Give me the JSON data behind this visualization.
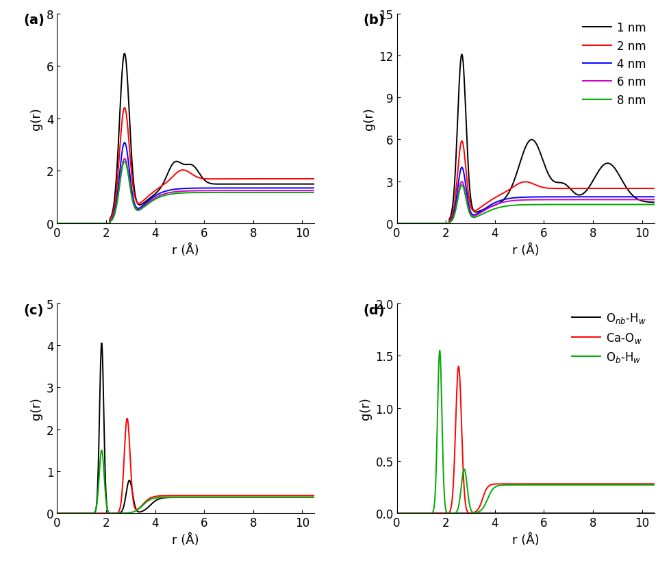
{
  "panel_a": {
    "ylabel": "g(r)",
    "xlabel": "r (Å)",
    "label": "(a)",
    "ylim": [
      0,
      8
    ],
    "yticks": [
      0,
      2,
      4,
      6,
      8
    ],
    "xlim": [
      0,
      10.5
    ],
    "xticks": [
      0,
      2,
      4,
      6,
      8,
      10
    ]
  },
  "panel_b": {
    "ylabel": "g(r)",
    "xlabel": "r (Å)",
    "label": "(b)",
    "ylim": [
      0,
      15
    ],
    "yticks": [
      0,
      3,
      6,
      9,
      12,
      15
    ],
    "xlim": [
      0,
      10.5
    ],
    "xticks": [
      0,
      2,
      4,
      6,
      8,
      10
    ]
  },
  "panel_c": {
    "ylabel": "g(r)",
    "xlabel": "r (Å)",
    "label": "(c)",
    "ylim": [
      0,
      5
    ],
    "yticks": [
      0,
      1,
      2,
      3,
      4,
      5
    ],
    "xlim": [
      0,
      10.5
    ],
    "xticks": [
      0,
      2,
      4,
      6,
      8,
      10
    ]
  },
  "panel_d": {
    "ylabel": "g(r)",
    "xlabel": "r (Å)",
    "label": "(d)",
    "ylim": [
      0,
      2.0
    ],
    "yticks": [
      0.0,
      0.5,
      1.0,
      1.5,
      2.0
    ],
    "xlim": [
      0,
      10.5
    ],
    "xticks": [
      0,
      2,
      4,
      6,
      8,
      10
    ]
  },
  "legend_ab": {
    "labels": [
      "1 nm",
      "2 nm",
      "4 nm",
      "6 nm",
      "8 nm"
    ],
    "colors": [
      "#000000",
      "#ff0000",
      "#0000ff",
      "#cc00cc",
      "#00aa00"
    ]
  },
  "legend_d": {
    "labels": [
      "O$_{nb}$-H$_w$",
      "Ca-O$_w$",
      "O$_b$-H$_w$"
    ],
    "colors": [
      "#000000",
      "#ff0000",
      "#00aa00"
    ]
  }
}
